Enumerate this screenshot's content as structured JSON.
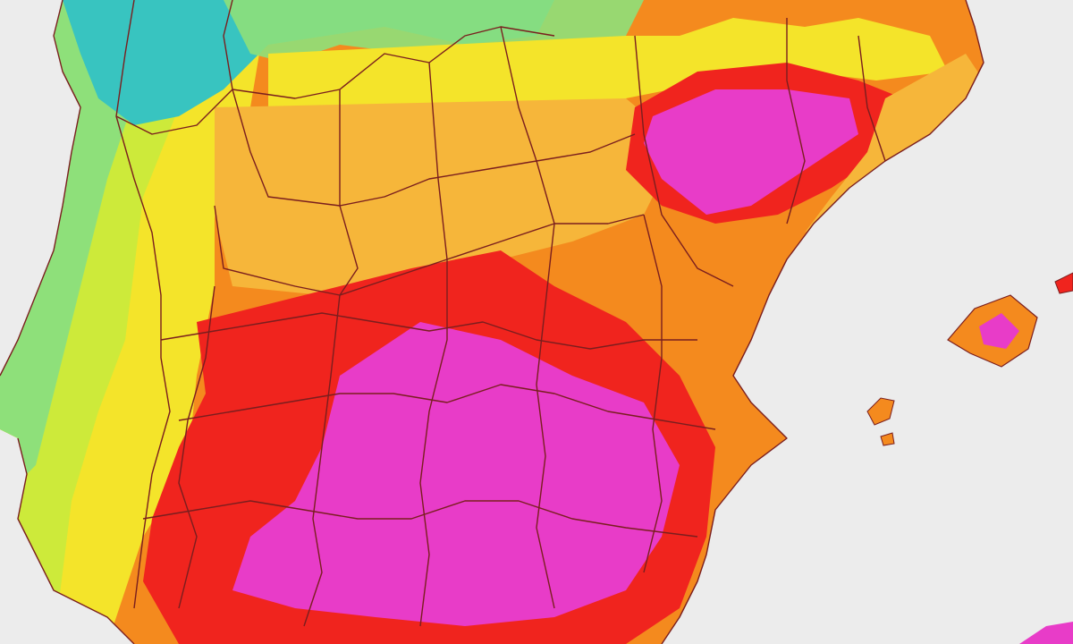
{
  "map": {
    "colors": {
      "background_sea": "#ececec",
      "teal": "#38c4c0",
      "green": "#8ee07a",
      "yellow_green": "#cdea3a",
      "yellow": "#f4e42a",
      "light_orange": "#f6b63a",
      "orange": "#f48a1e",
      "red": "#f0241e",
      "magenta": "#e83cc8",
      "border": "#7a1e1e"
    },
    "legend": [],
    "labels": []
  }
}
